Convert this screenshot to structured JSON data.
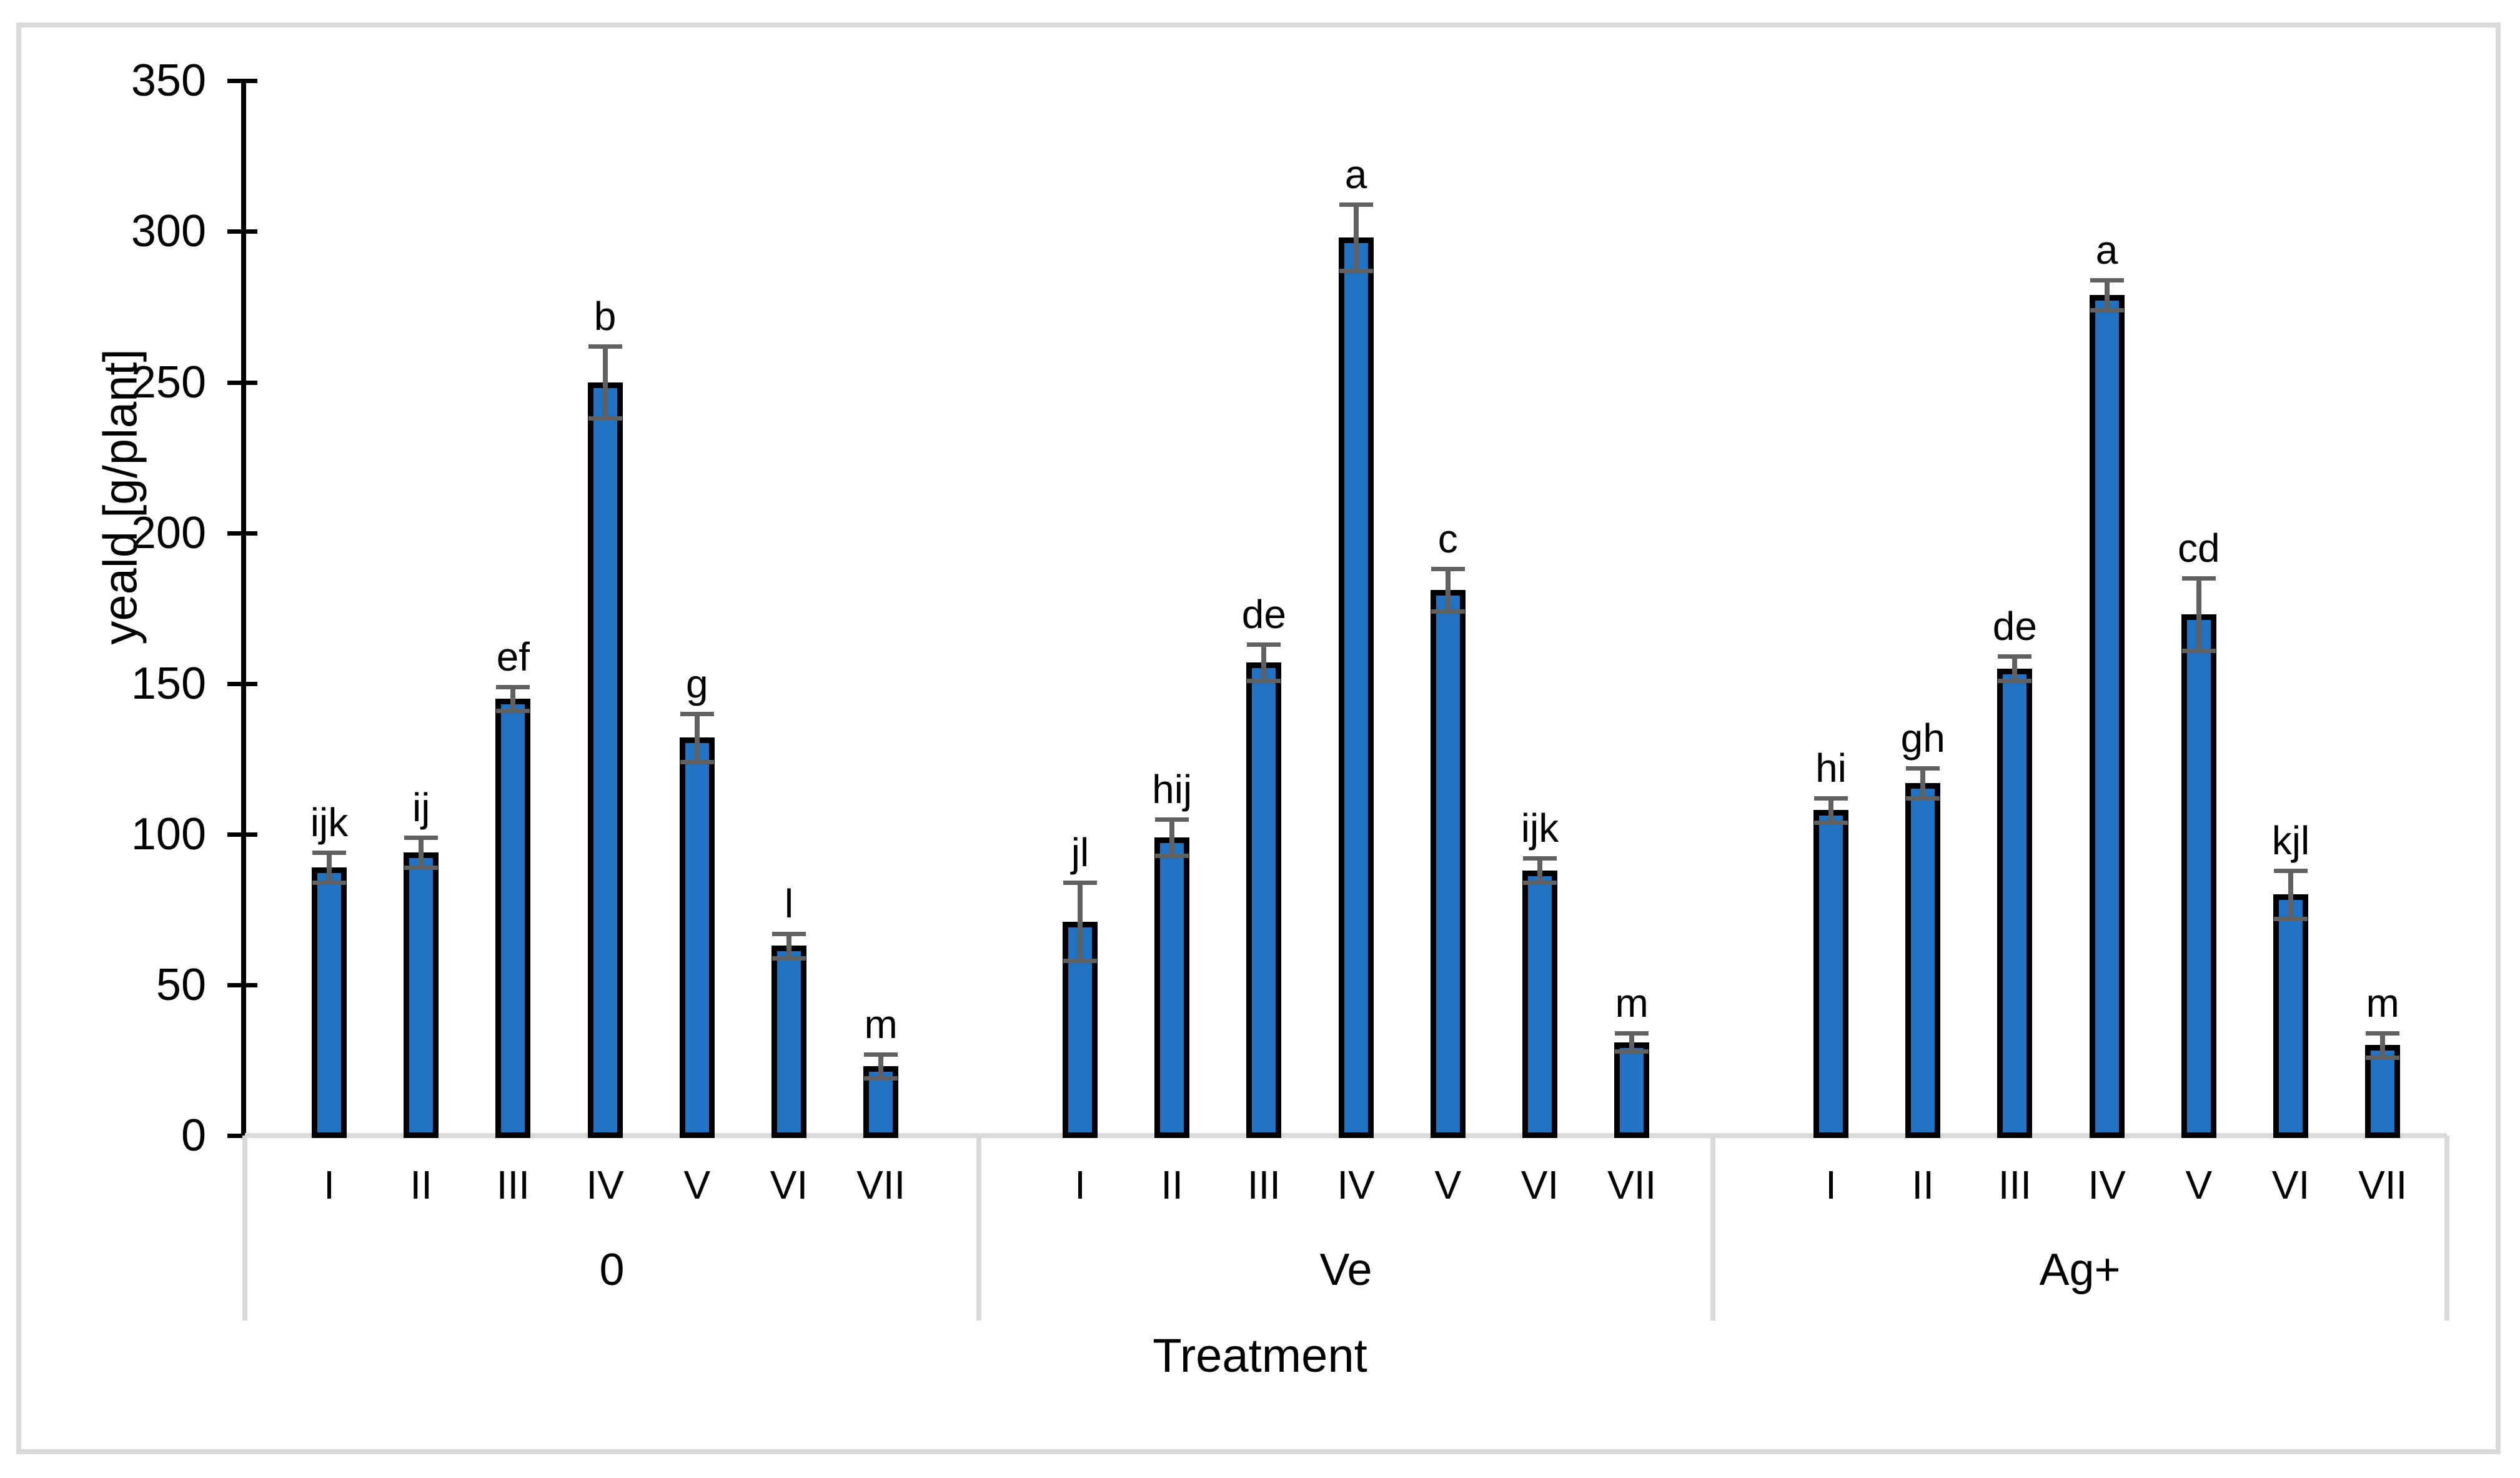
{
  "chart_data": {
    "type": "bar",
    "title": "",
    "ylabel": "yeald [g/plant]",
    "xlabel": "Treatment",
    "ylim": [
      0,
      350
    ],
    "ytick_step": 50,
    "ytick_labels": [
      "0",
      "50",
      "100",
      "150",
      "200",
      "250",
      "300",
      "350"
    ],
    "grid": false,
    "legend_position": "none",
    "colors": {
      "bar_fill": "#1F72C4",
      "bar_border": "#000000",
      "error_bar": "#616161",
      "category_axis_line": "#D9D9D9",
      "value_axis_line": "#000000",
      "figure_border": "#D9D9D9",
      "text": "#000000"
    },
    "categories": [
      "I",
      "II",
      "III",
      "IV",
      "V",
      "VI",
      "VII"
    ],
    "groups": [
      {
        "label": "0",
        "categories": [
          "I",
          "II",
          "III",
          "IV",
          "V",
          "VI",
          "VII"
        ],
        "values": [
          89,
          94,
          145,
          250,
          132,
          63,
          23
        ],
        "errors": [
          5,
          5,
          4,
          12,
          8,
          4,
          4
        ],
        "letters": [
          "ijk",
          "ij",
          "ef",
          "b",
          "g",
          "l",
          "m"
        ]
      },
      {
        "label": "Ve",
        "categories": [
          "I",
          "II",
          "III",
          "IV",
          "V",
          "VI",
          "VII"
        ],
        "values": [
          71,
          99,
          157,
          298,
          181,
          88,
          31
        ],
        "errors": [
          13,
          6,
          6,
          11,
          7,
          4,
          3
        ],
        "letters": [
          "jl",
          "hij",
          "de",
          "a",
          "c",
          "ijk",
          "m"
        ]
      },
      {
        "label": "Ag+",
        "categories": [
          "I",
          "II",
          "III",
          "IV",
          "V",
          "VI",
          "VII"
        ],
        "values": [
          108,
          117,
          155,
          279,
          173,
          80,
          30
        ],
        "errors": [
          4,
          5,
          4,
          5,
          12,
          8,
          4
        ],
        "letters": [
          "hi",
          "gh",
          "de",
          "a",
          "cd",
          "kjl",
          "m"
        ]
      }
    ]
  }
}
